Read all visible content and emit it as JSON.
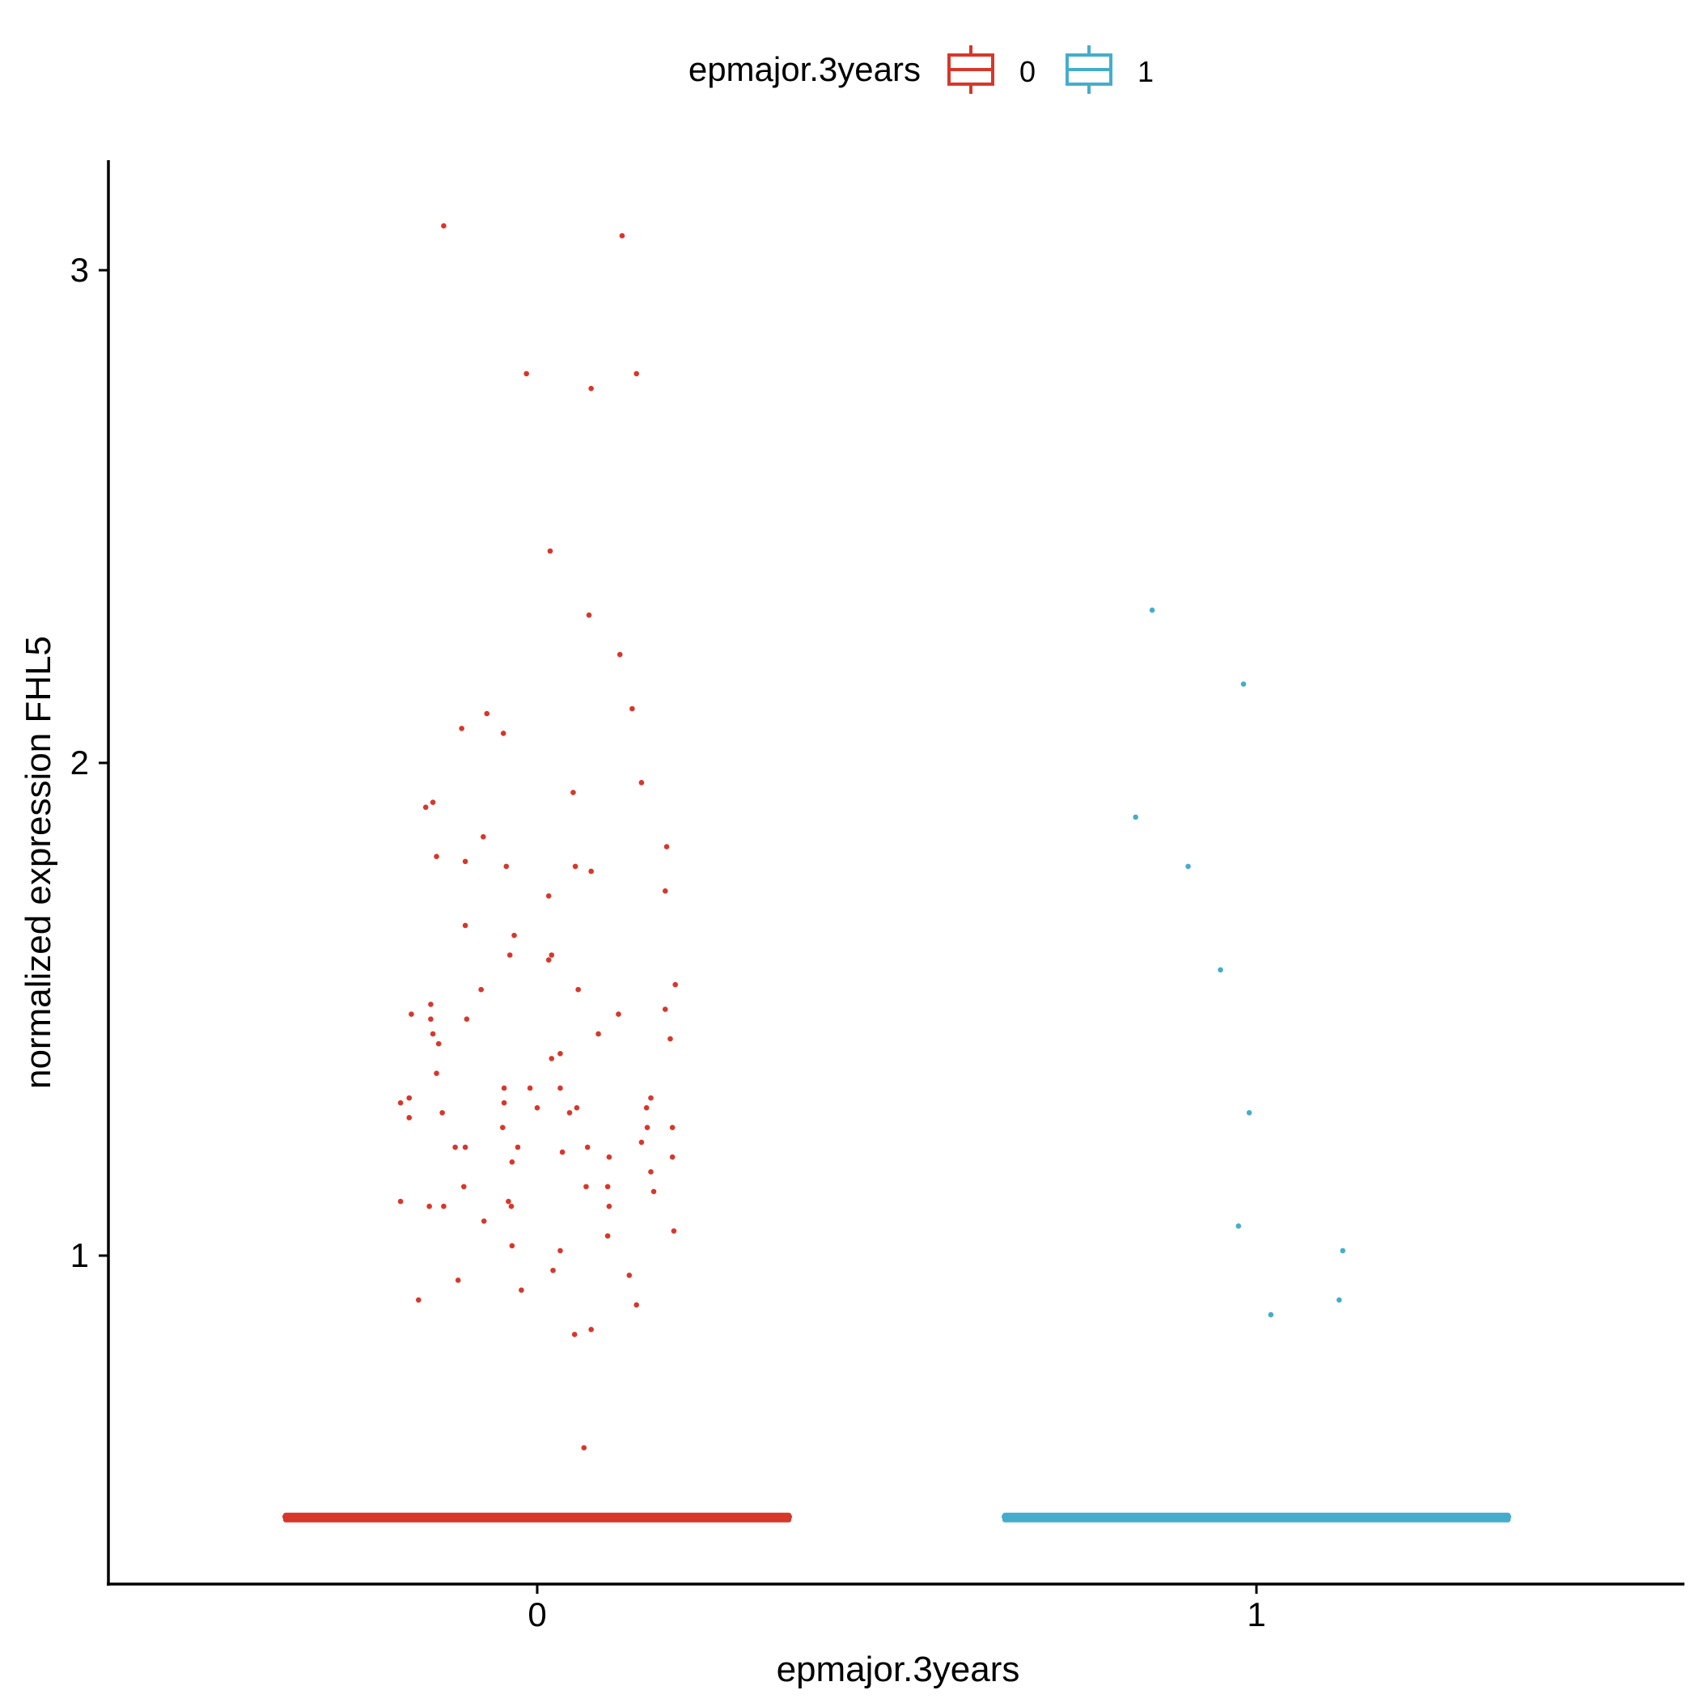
{
  "chart_data": {
    "type": "box-jitter",
    "xlabel": "epmajor.3years",
    "ylabel": "normalized expression FHL5",
    "categories": [
      "0",
      "1"
    ],
    "yticks": [
      1,
      2,
      3
    ],
    "ylim": [
      0.33,
      3.22
    ],
    "legend": {
      "title": "epmajor.3years",
      "position": "top",
      "entries": [
        "0",
        "1"
      ]
    },
    "colors": {
      "0": "#D7372B",
      "1": "#45ADCB"
    },
    "series": [
      {
        "name": "0",
        "x_center": 0,
        "box": {
          "q1": 0.47,
          "median": 0.47,
          "q3": 0.47,
          "whisker_low": 0.47,
          "whisker_high": 0.47
        },
        "points": [
          [
            -0.13,
            3.09
          ],
          [
            0.118,
            3.07
          ],
          [
            -0.015,
            2.79
          ],
          [
            0.138,
            2.79
          ],
          [
            0.075,
            2.76
          ],
          [
            0.018,
            2.43
          ],
          [
            0.072,
            2.3
          ],
          [
            0.115,
            2.22
          ],
          [
            0.132,
            2.11
          ],
          [
            -0.07,
            2.1
          ],
          [
            -0.105,
            2.07
          ],
          [
            -0.047,
            2.06
          ],
          [
            0.145,
            1.96
          ],
          [
            0.05,
            1.94
          ],
          [
            -0.145,
            1.92
          ],
          [
            -0.155,
            1.91
          ],
          [
            -0.075,
            1.85
          ],
          [
            0.18,
            1.83
          ],
          [
            -0.14,
            1.81
          ],
          [
            -0.1,
            1.8
          ],
          [
            -0.043,
            1.79
          ],
          [
            0.053,
            1.79
          ],
          [
            0.075,
            1.78
          ],
          [
            0.178,
            1.74
          ],
          [
            0.016,
            1.73
          ],
          [
            -0.1,
            1.67
          ],
          [
            -0.032,
            1.65
          ],
          [
            -0.038,
            1.61
          ],
          [
            0.02,
            1.61
          ],
          [
            0.016,
            1.6
          ],
          [
            0.192,
            1.55
          ],
          [
            -0.078,
            1.54
          ],
          [
            0.057,
            1.54
          ],
          [
            -0.148,
            1.51
          ],
          [
            0.178,
            1.5
          ],
          [
            -0.175,
            1.49
          ],
          [
            -0.098,
            1.48
          ],
          [
            0.113,
            1.49
          ],
          [
            -0.148,
            1.48
          ],
          [
            -0.145,
            1.45
          ],
          [
            0.085,
            1.45
          ],
          [
            -0.137,
            1.43
          ],
          [
            0.185,
            1.44
          ],
          [
            0.032,
            1.41
          ],
          [
            0.02,
            1.4
          ],
          [
            -0.14,
            1.37
          ],
          [
            -0.01,
            1.34
          ],
          [
            -0.046,
            1.34
          ],
          [
            0.032,
            1.34
          ],
          [
            -0.046,
            1.31
          ],
          [
            -0.19,
            1.31
          ],
          [
            -0.178,
            1.32
          ],
          [
            0.158,
            1.32
          ],
          [
            0.055,
            1.3
          ],
          [
            -0.178,
            1.28
          ],
          [
            0.152,
            1.3
          ],
          [
            -0.132,
            1.29
          ],
          [
            0.0,
            1.3
          ],
          [
            0.045,
            1.29
          ],
          [
            0.188,
            1.26
          ],
          [
            -0.048,
            1.26
          ],
          [
            0.153,
            1.26
          ],
          [
            0.145,
            1.23
          ],
          [
            -0.114,
            1.22
          ],
          [
            -0.1,
            1.22
          ],
          [
            -0.027,
            1.22
          ],
          [
            0.07,
            1.22
          ],
          [
            0.035,
            1.21
          ],
          [
            0.1,
            1.2
          ],
          [
            0.188,
            1.2
          ],
          [
            -0.035,
            1.19
          ],
          [
            0.158,
            1.17
          ],
          [
            -0.102,
            1.14
          ],
          [
            0.068,
            1.14
          ],
          [
            0.098,
            1.14
          ],
          [
            0.162,
            1.13
          ],
          [
            -0.19,
            1.11
          ],
          [
            -0.15,
            1.1
          ],
          [
            -0.13,
            1.1
          ],
          [
            -0.04,
            1.11
          ],
          [
            -0.036,
            1.1
          ],
          [
            0.1,
            1.1
          ],
          [
            -0.074,
            1.07
          ],
          [
            0.19,
            1.05
          ],
          [
            0.098,
            1.04
          ],
          [
            -0.035,
            1.02
          ],
          [
            0.032,
            1.01
          ],
          [
            0.022,
            0.97
          ],
          [
            -0.11,
            0.95
          ],
          [
            0.128,
            0.96
          ],
          [
            -0.022,
            0.93
          ],
          [
            -0.165,
            0.91
          ],
          [
            0.138,
            0.9
          ],
          [
            0.075,
            0.85
          ],
          [
            0.052,
            0.84
          ],
          [
            0.065,
            0.61
          ]
        ]
      },
      {
        "name": "1",
        "x_center": 1,
        "box": {
          "q1": 0.47,
          "median": 0.47,
          "q3": 0.47,
          "whisker_low": 0.47,
          "whisker_high": 0.47
        },
        "points": [
          [
            0.855,
            2.31
          ],
          [
            0.982,
            2.16
          ],
          [
            0.832,
            1.89
          ],
          [
            0.905,
            1.79
          ],
          [
            0.95,
            1.58
          ],
          [
            0.99,
            1.29
          ],
          [
            0.975,
            1.06
          ],
          [
            1.02,
            0.88
          ],
          [
            1.12,
            1.01
          ],
          [
            1.115,
            0.91
          ]
        ]
      }
    ]
  }
}
